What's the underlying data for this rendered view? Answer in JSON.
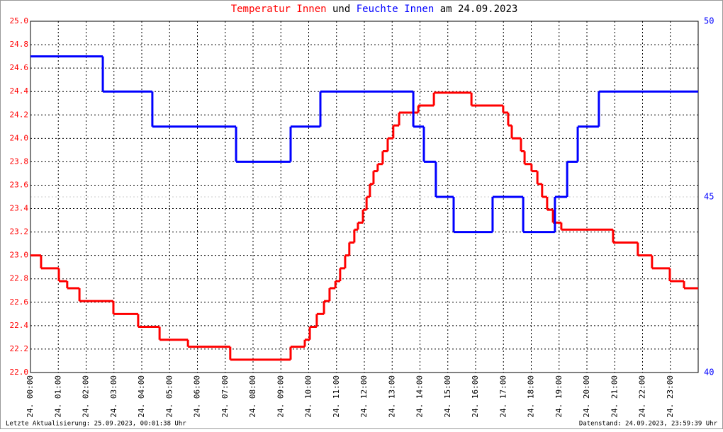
{
  "chart_data": {
    "type": "step-line",
    "title_parts": [
      "und",
      "am 24.09.2023"
    ],
    "footer_left": "Letzte Aktualisierung: 25.09.2023, 00:01:38 Uhr",
    "footer_right": "Datenstand: 24.09.2023, 23:59:39 Uhr",
    "xlim": [
      0,
      24
    ],
    "xticks": [
      {
        "value": 0,
        "label": "24. 00:00"
      },
      {
        "value": 1,
        "label": "24. 01:00"
      },
      {
        "value": 2,
        "label": "24. 02:00"
      },
      {
        "value": 3,
        "label": "24. 03:00"
      },
      {
        "value": 4,
        "label": "24. 04:00"
      },
      {
        "value": 5,
        "label": "24. 05:00"
      },
      {
        "value": 6,
        "label": "24. 06:00"
      },
      {
        "value": 7,
        "label": "24. 07:00"
      },
      {
        "value": 8,
        "label": "24. 08:00"
      },
      {
        "value": 9,
        "label": "24. 09:00"
      },
      {
        "value": 10,
        "label": "24. 10:00"
      },
      {
        "value": 11,
        "label": "24. 11:00"
      },
      {
        "value": 12,
        "label": "24. 12:00"
      },
      {
        "value": 13,
        "label": "24. 13:00"
      },
      {
        "value": 14,
        "label": "24. 14:00"
      },
      {
        "value": 15,
        "label": "24. 15:00"
      },
      {
        "value": 16,
        "label": "24. 16:00"
      },
      {
        "value": 17,
        "label": "24. 17:00"
      },
      {
        "value": 18,
        "label": "24. 18:00"
      },
      {
        "value": 19,
        "label": "24. 19:00"
      },
      {
        "value": 20,
        "label": "24. 20:00"
      },
      {
        "value": 21,
        "label": "24. 21:00"
      },
      {
        "value": 22,
        "label": "24. 22:00"
      },
      {
        "value": 23,
        "label": "24. 23:00"
      }
    ],
    "ylim": [
      22.0,
      25.0
    ],
    "yticks": [
      {
        "value": 22.0,
        "label": "22.0"
      },
      {
        "value": 22.2,
        "label": "22.2"
      },
      {
        "value": 22.4,
        "label": "22.4"
      },
      {
        "value": 22.6,
        "label": "22.6"
      },
      {
        "value": 22.8,
        "label": "22.8"
      },
      {
        "value": 23.0,
        "label": "23.0"
      },
      {
        "value": 23.2,
        "label": "23.2"
      },
      {
        "value": 23.4,
        "label": "23.4"
      },
      {
        "value": 23.6,
        "label": "23.6"
      },
      {
        "value": 23.8,
        "label": "23.8"
      },
      {
        "value": 24.0,
        "label": "24.0"
      },
      {
        "value": 24.2,
        "label": "24.2"
      },
      {
        "value": 24.4,
        "label": "24.4"
      },
      {
        "value": 24.6,
        "label": "24.6"
      },
      {
        "value": 24.8,
        "label": "24.8"
      },
      {
        "value": 25.0,
        "label": "25.0"
      }
    ],
    "y2lim": [
      40,
      50
    ],
    "y2ticks": [
      40,
      45,
      50
    ],
    "grid": true,
    "series": [
      {
        "name": "Temperatur Innen",
        "color": "#ff0000",
        "axis": "y",
        "x": [
          0,
          0.38,
          1.02,
          1.32,
          1.76,
          2.98,
          3.87,
          4.64,
          5.66,
          7.18,
          9.35,
          9.86,
          10.04,
          10.29,
          10.55,
          10.75,
          10.96,
          11.13,
          11.31,
          11.46,
          11.64,
          11.77,
          11.95,
          12.08,
          12.2,
          12.33,
          12.48,
          12.66,
          12.84,
          13.04,
          13.25,
          13.94,
          14.5,
          15.85,
          16.99,
          17.17,
          17.3,
          17.63,
          17.76,
          18.01,
          18.22,
          18.39,
          18.57,
          18.78,
          19.08,
          20.94,
          21.83,
          22.34,
          22.98,
          23.49
        ],
        "values": [
          23.0,
          22.89,
          22.78,
          22.72,
          22.61,
          22.5,
          22.39,
          22.28,
          22.22,
          22.11,
          22.22,
          22.28,
          22.39,
          22.5,
          22.61,
          22.72,
          22.78,
          22.89,
          23.0,
          23.11,
          23.22,
          23.28,
          23.39,
          23.5,
          23.61,
          23.72,
          23.78,
          23.89,
          24.0,
          24.11,
          24.22,
          24.28,
          24.39,
          24.28,
          24.22,
          24.11,
          24.0,
          23.89,
          23.78,
          23.72,
          23.61,
          23.5,
          23.39,
          23.28,
          23.22,
          23.11,
          23.0,
          22.89,
          22.78,
          22.72
        ]
      },
      {
        "name": "Feuchte Innen",
        "color": "#0000ff",
        "axis": "y2",
        "x": [
          0,
          2.6,
          4.38,
          7.39,
          9.35,
          10.42,
          13.76,
          14.14,
          14.57,
          15.21,
          16.61,
          17.71,
          18.85,
          19.29,
          19.67,
          20.43
        ],
        "values": [
          49,
          48,
          47,
          46,
          47,
          48,
          47,
          46,
          45,
          44,
          45,
          44,
          45,
          46,
          47,
          48
        ]
      }
    ]
  }
}
